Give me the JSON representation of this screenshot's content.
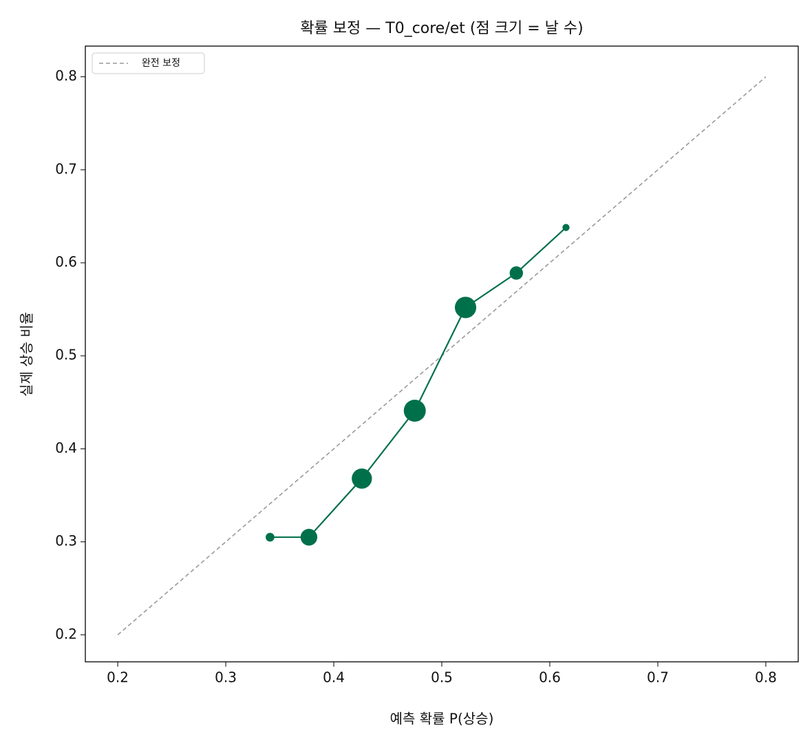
{
  "chart_data": {
    "type": "line",
    "title": "확률 보정 — T0_core/et (점 크기 = 날 수)",
    "xlabel": "예측 확률 P(상승)",
    "ylabel": "실제 상승 비율",
    "xlim": [
      0.17,
      0.83
    ],
    "ylim": [
      0.171,
      0.833
    ],
    "xticks": [
      0.2,
      0.3,
      0.4,
      0.5,
      0.6,
      0.7,
      0.8
    ],
    "yticks": [
      0.2,
      0.3,
      0.4,
      0.5,
      0.6,
      0.7,
      0.8
    ],
    "grid": false,
    "legend": "upper left",
    "series": [
      {
        "name": "완전 보정",
        "color": "#999999",
        "linestyle": "dashed",
        "x": [
          0.2,
          0.8
        ],
        "values": [
          0.2,
          0.8
        ]
      },
      {
        "color": "#00704a",
        "linestyle": "solid",
        "x": [
          0.341,
          0.377,
          0.426,
          0.475,
          0.522,
          0.569,
          0.615
        ],
        "values": [
          0.305,
          0.305,
          0.368,
          0.441,
          0.552,
          0.589,
          0.638
        ],
        "sizes": [
          30,
          110,
          160,
          190,
          180,
          70,
          20
        ]
      }
    ]
  }
}
